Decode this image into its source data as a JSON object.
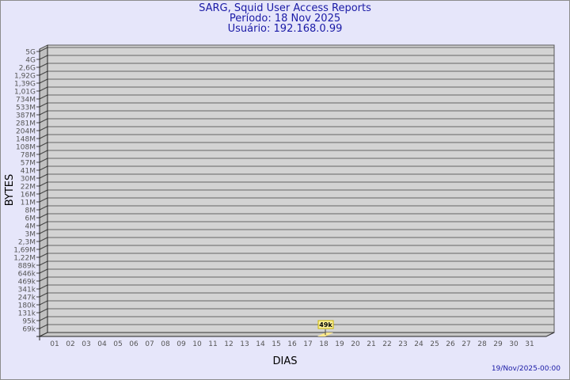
{
  "header": {
    "title": "SARG, Squid User Access Reports",
    "period": "Período: 18 Nov 2025",
    "user": "Usuário: 192.168.0.99"
  },
  "footer": {
    "timestamp": "19/Nov/2025-00:00"
  },
  "chart_data": {
    "type": "bar",
    "xlabel": "DIAS",
    "ylabel": "BYTES",
    "categories": [
      "01",
      "02",
      "03",
      "04",
      "05",
      "06",
      "07",
      "08",
      "09",
      "10",
      "11",
      "12",
      "13",
      "14",
      "15",
      "16",
      "17",
      "18",
      "19",
      "20",
      "21",
      "22",
      "23",
      "24",
      "25",
      "26",
      "27",
      "28",
      "29",
      "30",
      "31"
    ],
    "y_ticks": [
      "5G",
      "4G",
      "2,6G",
      "1,92G",
      "1,39G",
      "1,01G",
      "734M",
      "533M",
      "387M",
      "281M",
      "204M",
      "148M",
      "108M",
      "78M",
      "57M",
      "41M",
      "30M",
      "22M",
      "16M",
      "11M",
      "8M",
      "6M",
      "4M",
      "3M",
      "2,3M",
      "1,69M",
      "1,22M",
      "889k",
      "646k",
      "469k",
      "341k",
      "247k",
      "180k",
      "131k",
      "95k",
      "69k"
    ],
    "y_scale": "log",
    "grid": true,
    "series": [
      {
        "values": [
          null,
          null,
          null,
          null,
          null,
          null,
          null,
          null,
          null,
          null,
          null,
          null,
          null,
          null,
          null,
          null,
          null,
          49000,
          null,
          null,
          null,
          null,
          null,
          null,
          null,
          null,
          null,
          null,
          null,
          null,
          null
        ]
      }
    ],
    "data_labels": {
      "18": "49k"
    },
    "colors": {
      "wall": "#d3d3d3",
      "bar": "#ffe98c",
      "label_bg": "#fff3a0",
      "title": "#1a1aa6"
    }
  }
}
